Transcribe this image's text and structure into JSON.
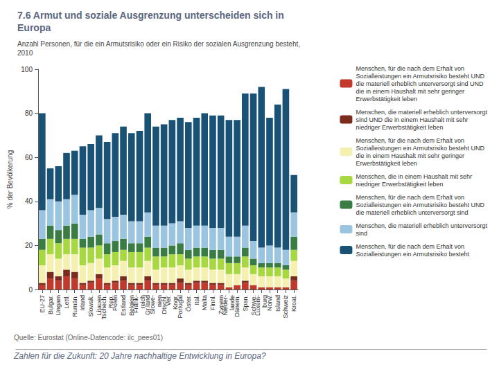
{
  "chart_data": {
    "type": "bar",
    "title": "7.6 Armut und soziale Ausgrenzung unterscheiden sich in\nEuropa",
    "subtitle": "Anzahl Personen, für die ein Armutsrisiko oder ein Risiko der sozialen Ausgrenzung besteht,\n2010",
    "ylabel": "% der Bevölkerung",
    "annotations": [
      "Quelle: Eurostat (Online-Datencode: ilc_pees01)",
      "Zahlen für die Zukunft: 20 Jahre nachhaltige Entwicklung in Europa?"
    ],
    "categories": [
      "EU-27",
      "Bulgar.",
      "Ungarn",
      "Lettl.",
      "Rumän.",
      "Irland",
      "Slowak.",
      "Litauen",
      "Tschech.\nRep.",
      "Polen",
      "Estland",
      "Belgien",
      "Frank-\nreich",
      "Gr.land",
      "Slowe-\nnien",
      "Dtschl.",
      "Ver.\nKngr.",
      "Portugal",
      "Öster.",
      "Ital.",
      "Malta",
      "Finnl.",
      "Zypern",
      "Nieder-\nlande",
      "Dänem.",
      "Span.",
      "Schwe.",
      "Luxem-\nburg",
      "Norw.",
      "Island",
      "Schweiz",
      "Kroat."
    ],
    "series": [
      {
        "name": "Menschen, für die nach dem Erhalt von\nSozialleistungen ein Armutsrisiko besteht UND\ndie materiell erheblich unterversorgt sind UND\ndie in einem Haushalt mit sehr geringer\nErwerbstätigkeit leben",
        "color": "#c0392b",
        "values": [
          2,
          5,
          4,
          6,
          5,
          2,
          3,
          5,
          2,
          3,
          4,
          2,
          2,
          4,
          2,
          2,
          2,
          3,
          2,
          3,
          3,
          2,
          2,
          1,
          2,
          3,
          2,
          1,
          1,
          1,
          1,
          4
        ]
      },
      {
        "name": "Menschen, die materiell erheblich unterversorgt\nsind UND die in einem Haushalt mit sehr\nniedriger Erwerbstätigkeit leben",
        "color": "#7b2a1e",
        "values": [
          1,
          3,
          2,
          3,
          3,
          1,
          1,
          2,
          1,
          1,
          2,
          1,
          1,
          2,
          1,
          1,
          1,
          2,
          1,
          1,
          1,
          1,
          1,
          0,
          0,
          1,
          0,
          0,
          0,
          0,
          0,
          2
        ]
      },
      {
        "name": "Menschen, für die nach dem Erhalt von\nSozialleistungen ein Armutsrisiko besteht UND\ndie in einem Haushalt mit sehr geringer\nErwerbstätigkeit leben",
        "color": "#f5f0b0",
        "values": [
          8,
          8,
          8,
          7,
          8,
          8,
          8,
          7,
          7,
          7,
          7,
          7,
          7,
          7,
          6,
          7,
          7,
          6,
          6,
          6,
          6,
          6,
          6,
          6,
          5,
          6,
          5,
          5,
          5,
          5,
          4,
          7
        ]
      },
      {
        "name": "Menschen, die in einem Haushalt mit sehr\nniedriger Erwerbstätigkeit leben",
        "color": "#a8d840",
        "values": [
          7,
          7,
          7,
          7,
          7,
          8,
          7,
          6,
          6,
          6,
          5,
          7,
          7,
          6,
          6,
          5,
          6,
          5,
          5,
          5,
          5,
          5,
          5,
          5,
          5,
          5,
          4,
          4,
          4,
          4,
          4,
          5
        ]
      },
      {
        "name": "Menschen, für die nach dem Erhalt von\nSozialleistungen ein Armutsrisiko besteht UND\ndie materiell erheblich unterversorgt sind",
        "color": "#3a7d44",
        "values": [
          5,
          6,
          6,
          6,
          7,
          4,
          5,
          5,
          5,
          5,
          5,
          4,
          4,
          5,
          4,
          4,
          4,
          5,
          4,
          4,
          4,
          4,
          4,
          3,
          3,
          4,
          3,
          2,
          2,
          2,
          2,
          6
        ]
      },
      {
        "name": "Menschen, die materiell erheblich unterversorgt\nsind",
        "color": "#9bc4e0",
        "values": [
          13,
          12,
          13,
          12,
          13,
          11,
          12,
          12,
          11,
          11,
          11,
          10,
          10,
          11,
          10,
          10,
          10,
          10,
          10,
          10,
          10,
          10,
          10,
          9,
          9,
          10,
          8,
          7,
          8,
          7,
          7,
          11
        ]
      },
      {
        "name": "Menschen, für die nach dem Erhalt von\nSozialleistungen ein Armutsrisiko besteht",
        "color": "#1a5276",
        "values": [
          44,
          14,
          16,
          21,
          20,
          31,
          30,
          33,
          35,
          38,
          40,
          40,
          41,
          45,
          45,
          46,
          47,
          47,
          48,
          49,
          51,
          51,
          51,
          53,
          53,
          60,
          67,
          73,
          58,
          65,
          73,
          17
        ]
      }
    ],
    "ylim": [
      0,
      100
    ],
    "yticks": [
      0,
      20,
      40,
      60,
      80,
      100
    ],
    "stacked": true,
    "grid": false,
    "legend": "right"
  }
}
